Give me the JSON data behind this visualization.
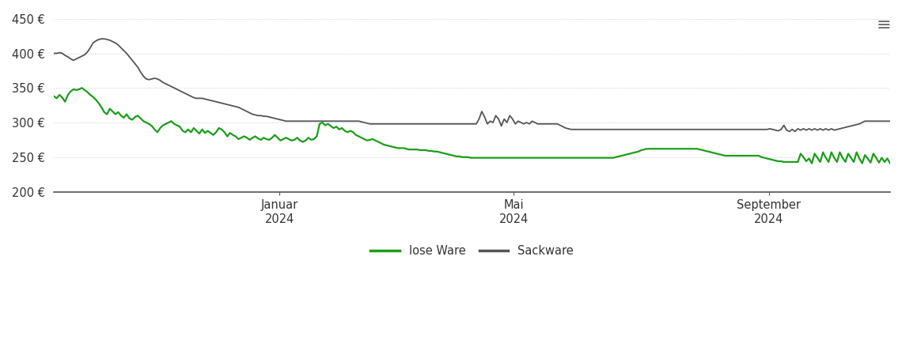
{
  "ylim": [
    200,
    460
  ],
  "yticks": [
    200,
    250,
    300,
    350,
    400,
    450
  ],
  "ytick_labels": [
    "200 €",
    "250 €",
    "300 €",
    "350 €",
    "400 €",
    "450 €"
  ],
  "background_color": "#ffffff",
  "grid_color": "#cccccc",
  "lose_ware_color": "#1a9e1a",
  "sackware_color": "#555555",
  "lose_ware_label": "lose Ware",
  "sackware_label": "Sackware",
  "x_tick_positions": [
    0.27,
    0.55,
    0.855
  ],
  "x_tick_labels": [
    "Januar\n2024",
    "Mai\n2024",
    "September\n2024"
  ],
  "lose_ware": [
    338,
    335,
    340,
    336,
    330,
    340,
    345,
    348,
    347,
    348,
    350,
    347,
    344,
    340,
    337,
    333,
    328,
    322,
    315,
    312,
    320,
    316,
    312,
    315,
    310,
    307,
    312,
    306,
    304,
    308,
    310,
    306,
    302,
    300,
    298,
    295,
    290,
    286,
    292,
    296,
    298,
    300,
    302,
    298,
    296,
    294,
    288,
    286,
    290,
    286,
    292,
    288,
    284,
    290,
    285,
    288,
    285,
    282,
    286,
    292,
    290,
    286,
    280,
    285,
    282,
    280,
    276,
    278,
    280,
    278,
    275,
    278,
    280,
    277,
    275,
    278,
    276,
    275,
    278,
    282,
    278,
    274,
    276,
    278,
    276,
    274,
    275,
    278,
    274,
    272,
    274,
    278,
    275,
    276,
    280,
    298,
    300,
    296,
    298,
    295,
    292,
    294,
    290,
    292,
    288,
    286,
    288,
    286,
    282,
    280,
    278,
    276,
    274,
    275,
    276,
    274,
    272,
    270,
    268,
    267,
    266,
    265,
    264,
    263,
    263,
    263,
    262,
    261,
    261,
    261,
    261,
    260,
    260,
    260,
    259,
    259,
    258,
    258,
    257,
    256,
    255,
    254,
    253,
    252,
    251,
    251,
    250,
    250,
    250,
    249,
    249,
    249,
    249,
    249,
    249,
    249,
    249,
    249,
    249,
    249,
    249,
    249,
    249,
    249,
    249,
    249,
    249,
    249,
    249,
    249,
    249,
    249,
    249,
    249,
    249,
    249,
    249,
    249,
    249,
    249,
    249,
    249,
    249,
    249,
    249,
    249,
    249,
    249,
    249,
    249,
    249,
    249,
    249,
    249,
    249,
    249,
    249,
    249,
    249,
    249,
    249,
    250,
    251,
    252,
    253,
    254,
    255,
    256,
    257,
    258,
    260,
    261,
    262,
    262,
    262,
    262,
    262,
    262,
    262,
    262,
    262,
    262,
    262,
    262,
    262,
    262,
    262,
    262,
    262,
    262,
    262,
    261,
    260,
    259,
    258,
    257,
    256,
    255,
    254,
    253,
    252,
    252,
    252,
    252,
    252,
    252,
    252,
    252,
    252,
    252,
    252,
    252,
    252,
    250,
    249,
    248,
    247,
    246,
    245,
    244,
    244,
    243,
    243,
    243,
    243,
    243,
    243,
    255,
    250,
    244,
    248,
    241,
    255,
    249,
    243,
    257,
    249,
    243,
    257,
    249,
    243,
    257,
    249,
    243,
    255,
    249,
    243,
    257,
    248,
    241,
    253,
    248,
    242,
    255,
    249,
    242,
    249,
    243,
    248,
    241
  ],
  "sackware": [
    400,
    400,
    401,
    400,
    397,
    395,
    392,
    390,
    392,
    394,
    396,
    398,
    402,
    408,
    415,
    418,
    420,
    421,
    421,
    420,
    419,
    417,
    415,
    412,
    408,
    404,
    400,
    395,
    390,
    385,
    380,
    373,
    367,
    363,
    362,
    363,
    364,
    363,
    361,
    358,
    356,
    354,
    352,
    350,
    348,
    346,
    344,
    342,
    340,
    338,
    336,
    335,
    335,
    335,
    334,
    333,
    332,
    331,
    330,
    329,
    328,
    327,
    326,
    325,
    324,
    323,
    322,
    320,
    318,
    316,
    314,
    312,
    311,
    310,
    310,
    309,
    309,
    308,
    307,
    306,
    305,
    304,
    303,
    302,
    302,
    302,
    302,
    302,
    302,
    302,
    302,
    302,
    302,
    302,
    302,
    302,
    302,
    302,
    302,
    302,
    302,
    302,
    302,
    302,
    302,
    302,
    302,
    302,
    302,
    302,
    301,
    300,
    299,
    298,
    298,
    298,
    298,
    298,
    298,
    298,
    298,
    298,
    298,
    298,
    298,
    298,
    298,
    298,
    298,
    298,
    298,
    298,
    298,
    298,
    298,
    298,
    298,
    298,
    298,
    298,
    298,
    298,
    298,
    298,
    298,
    298,
    298,
    298,
    298,
    298,
    298,
    298,
    305,
    316,
    308,
    298,
    302,
    300,
    310,
    305,
    295,
    305,
    300,
    310,
    305,
    298,
    302,
    300,
    298,
    300,
    298,
    302,
    300,
    298,
    298,
    298,
    298,
    298,
    298,
    298,
    298,
    296,
    294,
    292,
    291,
    290,
    290,
    290,
    290,
    290,
    290,
    290,
    290,
    290,
    290,
    290,
    290,
    290,
    290,
    290,
    290,
    290,
    290,
    290,
    290,
    290,
    290,
    290,
    290,
    290,
    290,
    290,
    290,
    290,
    290,
    290,
    290,
    290,
    290,
    290,
    290,
    290,
    290,
    290,
    290,
    290,
    290,
    290,
    290,
    290,
    290,
    290,
    290,
    290,
    290,
    290,
    290,
    290,
    290,
    290,
    290,
    290,
    290,
    290,
    290,
    290,
    290,
    290,
    290,
    290,
    290,
    290,
    290,
    290,
    290,
    290,
    291,
    290,
    289,
    288,
    290,
    296,
    289,
    287,
    290,
    287,
    291,
    289,
    291,
    289,
    291,
    289,
    291,
    289,
    291,
    289,
    291,
    289,
    291,
    289,
    290,
    291,
    292,
    293,
    294,
    295,
    296,
    297,
    298,
    300,
    302,
    302,
    302,
    302,
    302,
    302,
    302,
    302,
    302,
    302
  ]
}
